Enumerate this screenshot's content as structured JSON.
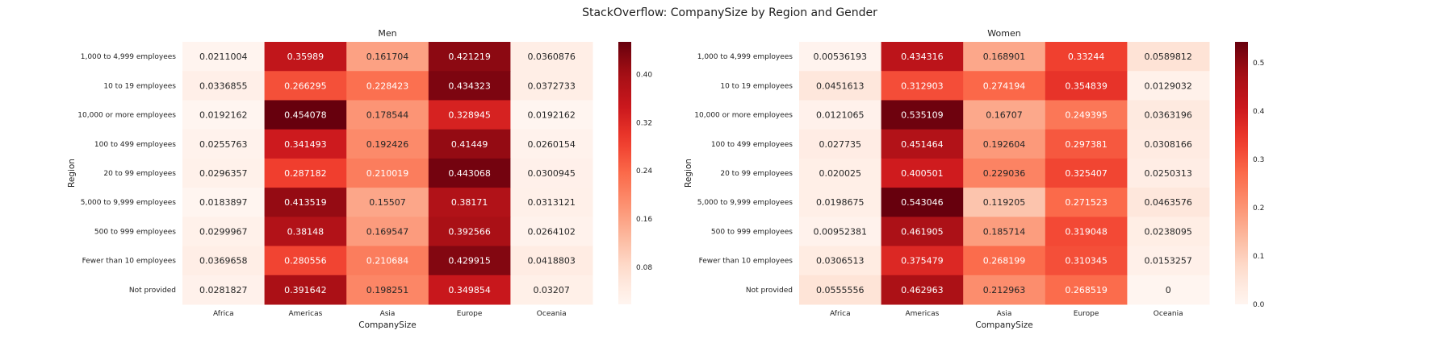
{
  "chart_data": {
    "type": "heatmap",
    "title": "StackOverflow: CompanySize by Region and Gender",
    "colormap": "Reds",
    "panels": [
      {
        "title": "Men",
        "xlabel": "CompanySize",
        "ylabel": "Region",
        "columns": [
          "Africa",
          "Americas",
          "Asia",
          "Europe",
          "Oceania"
        ],
        "rows": [
          "1,000 to 4,999 employees",
          "10 to 19 employees",
          "10,000 or more employees",
          "100 to 499 employees",
          "20 to 99 employees",
          "5,000 to 9,999 employees",
          "500 to 999 employees",
          "Fewer than 10 employees",
          "Not provided"
        ],
        "values": [
          [
            0.0211004,
            0.35989,
            0.161704,
            0.421219,
            0.0360876
          ],
          [
            0.0336855,
            0.266295,
            0.228423,
            0.434323,
            0.0372733
          ],
          [
            0.0192162,
            0.454078,
            0.178544,
            0.328945,
            0.0192162
          ],
          [
            0.0255763,
            0.341493,
            0.192426,
            0.41449,
            0.0260154
          ],
          [
            0.0296357,
            0.287182,
            0.210019,
            0.443068,
            0.0300945
          ],
          [
            0.0183897,
            0.413519,
            0.15507,
            0.38171,
            0.0313121
          ],
          [
            0.0299967,
            0.38148,
            0.169547,
            0.392566,
            0.0264102
          ],
          [
            0.0369658,
            0.280556,
            0.210684,
            0.429915,
            0.0418803
          ],
          [
            0.0281827,
            0.391642,
            0.198251,
            0.349854,
            0.03207
          ]
        ],
        "labels": [
          [
            "0.0211004",
            "0.35989",
            "0.161704",
            "0.421219",
            "0.0360876"
          ],
          [
            "0.0336855",
            "0.266295",
            "0.228423",
            "0.434323",
            "0.0372733"
          ],
          [
            "0.0192162",
            "0.454078",
            "0.178544",
            "0.328945",
            "0.0192162"
          ],
          [
            "0.0255763",
            "0.341493",
            "0.192426",
            "0.41449",
            "0.0260154"
          ],
          [
            "0.0296357",
            "0.287182",
            "0.210019",
            "0.443068",
            "0.0300945"
          ],
          [
            "0.0183897",
            "0.413519",
            "0.15507",
            "0.38171",
            "0.0313121"
          ],
          [
            "0.0299967",
            "0.38148",
            "0.169547",
            "0.392566",
            "0.0264102"
          ],
          [
            "0.0369658",
            "0.280556",
            "0.210684",
            "0.429915",
            "0.0418803"
          ],
          [
            "0.0281827",
            "0.391642",
            "0.198251",
            "0.349854",
            "0.03207"
          ]
        ],
        "vmin": 0.0183897,
        "vmax": 0.454078,
        "colorbar_ticks": [
          0.08,
          0.16,
          0.24,
          0.32,
          0.4
        ],
        "colorbar_tick_labels": [
          "0.08",
          "0.16",
          "0.24",
          "0.32",
          "0.40"
        ]
      },
      {
        "title": "Women",
        "xlabel": "CompanySize",
        "ylabel": "Region",
        "columns": [
          "Africa",
          "Americas",
          "Asia",
          "Europe",
          "Oceania"
        ],
        "rows": [
          "1,000 to 4,999 employees",
          "10 to 19 employees",
          "10,000 or more employees",
          "100 to 499 employees",
          "20 to 99 employees",
          "5,000 to 9,999 employees",
          "500 to 999 employees",
          "Fewer than 10 employees",
          "Not provided"
        ],
        "values": [
          [
            0.00536193,
            0.434316,
            0.168901,
            0.33244,
            0.0589812
          ],
          [
            0.0451613,
            0.312903,
            0.274194,
            0.354839,
            0.0129032
          ],
          [
            0.0121065,
            0.535109,
            0.16707,
            0.249395,
            0.0363196
          ],
          [
            0.027735,
            0.451464,
            0.192604,
            0.297381,
            0.0308166
          ],
          [
            0.020025,
            0.400501,
            0.229036,
            0.325407,
            0.0250313
          ],
          [
            0.0198675,
            0.543046,
            0.119205,
            0.271523,
            0.0463576
          ],
          [
            0.00952381,
            0.461905,
            0.185714,
            0.319048,
            0.0238095
          ],
          [
            0.0306513,
            0.375479,
            0.268199,
            0.310345,
            0.0153257
          ],
          [
            0.0555556,
            0.462963,
            0.212963,
            0.268519,
            0
          ]
        ],
        "labels": [
          [
            "0.00536193",
            "0.434316",
            "0.168901",
            "0.33244",
            "0.0589812"
          ],
          [
            "0.0451613",
            "0.312903",
            "0.274194",
            "0.354839",
            "0.0129032"
          ],
          [
            "0.0121065",
            "0.535109",
            "0.16707",
            "0.249395",
            "0.0363196"
          ],
          [
            "0.027735",
            "0.451464",
            "0.192604",
            "0.297381",
            "0.0308166"
          ],
          [
            "0.020025",
            "0.400501",
            "0.229036",
            "0.325407",
            "0.0250313"
          ],
          [
            "0.0198675",
            "0.543046",
            "0.119205",
            "0.271523",
            "0.0463576"
          ],
          [
            "0.00952381",
            "0.461905",
            "0.185714",
            "0.319048",
            "0.0238095"
          ],
          [
            "0.0306513",
            "0.375479",
            "0.268199",
            "0.310345",
            "0.0153257"
          ],
          [
            "0.0555556",
            "0.462963",
            "0.212963",
            "0.268519",
            "0"
          ]
        ],
        "vmin": 0,
        "vmax": 0.543046,
        "colorbar_ticks": [
          0.0,
          0.1,
          0.2,
          0.3,
          0.4,
          0.5
        ],
        "colorbar_tick_labels": [
          "0.0",
          "0.1",
          "0.2",
          "0.3",
          "0.4",
          "0.5"
        ]
      }
    ]
  }
}
